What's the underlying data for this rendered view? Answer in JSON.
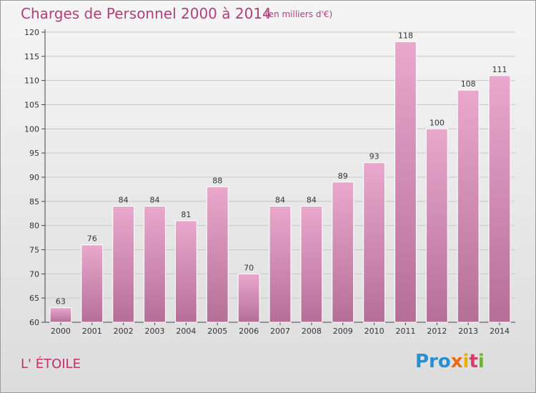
{
  "chart_data": {
    "type": "bar",
    "title": "Charges de Personnel 2000 à 2014",
    "subtitle": "(en milliers d'€)",
    "categories": [
      "2000",
      "2001",
      "2002",
      "2003",
      "2004",
      "2005",
      "2006",
      "2007",
      "2008",
      "2009",
      "2010",
      "2011",
      "2012",
      "2013",
      "2014"
    ],
    "values": [
      63,
      76,
      84,
      84,
      81,
      88,
      70,
      84,
      84,
      89,
      93,
      118,
      100,
      108,
      111
    ],
    "ylim": [
      60,
      120
    ],
    "yticks": [
      "60",
      "65",
      "70",
      "75",
      "80",
      "85",
      "90",
      "95",
      "100",
      "105",
      "110",
      "115",
      "120"
    ],
    "grid": true,
    "bar_color": "#d98bb6"
  },
  "footer": {
    "place": "L' ÉTOILE",
    "logo": [
      "Pro",
      "x",
      "i",
      "t",
      "i"
    ]
  }
}
